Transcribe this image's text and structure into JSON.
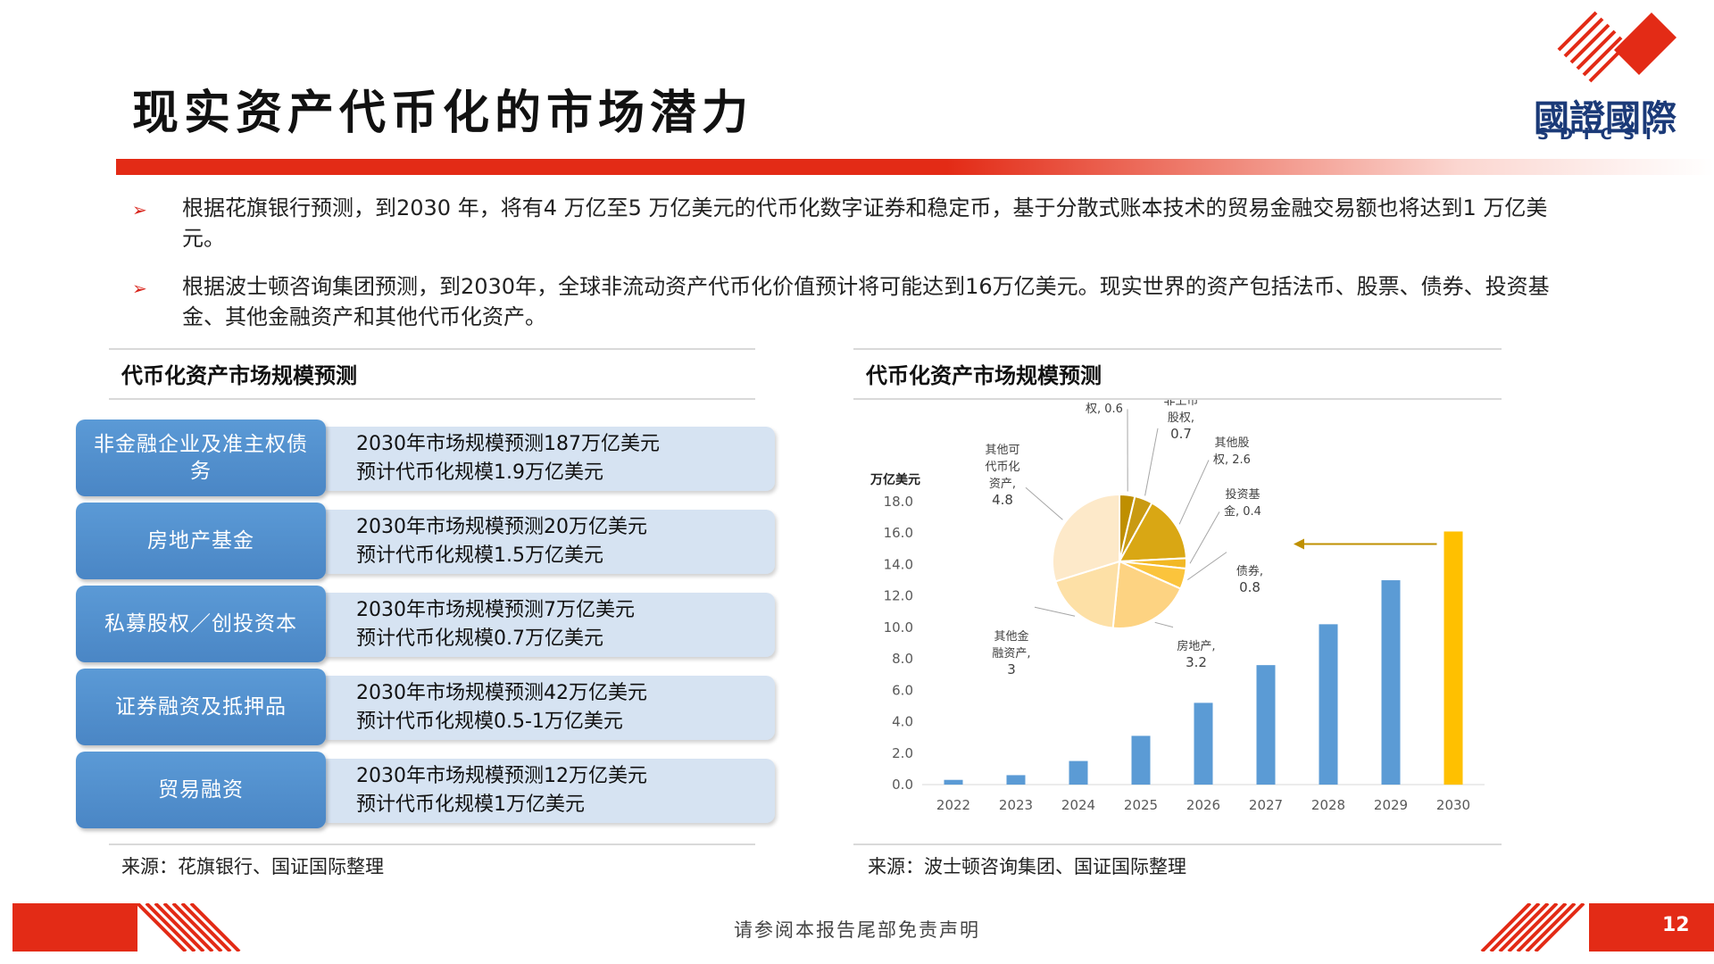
{
  "header": {
    "title": "现实资产代币化的市场潜力",
    "logo_text": "國證國際",
    "logo_sub": "SDICSI"
  },
  "bullets": [
    "根据花旗银行预测，到2030 年，将有4 万亿至5 万亿美元的代币化数字证券和稳定币，基于分散式账本技术的贸易金融交易额也将达到1 万亿美元。",
    "根据波士顿咨询集团预测，到2030年，全球非流动资产代币化价值预计将可能达到16万亿美元。现实世界的资产包括法币、股票、债券、投资基金、其他金融资产和其他代币化资产。"
  ],
  "left_panel": {
    "title": "代币化资产市场规模预测",
    "rows": [
      {
        "label": "非金融企业及准主权债务",
        "line1": "2030年市场规模预测187万亿美元",
        "line2": "预计代币化规模1.9万亿美元"
      },
      {
        "label": "房地产基金",
        "line1": "2030年市场规模预测20万亿美元",
        "line2": "预计代币化规模1.5万亿美元"
      },
      {
        "label": "私募股权／创投资本",
        "line1": "2030年市场规模预测7万亿美元",
        "line2": "预计代币化规模0.7万亿美元"
      },
      {
        "label": "证券融资及抵押品",
        "line1": "2030年市场规模预测42万亿美元",
        "line2": "预计代币化规模0.5-1万亿美元"
      },
      {
        "label": "贸易融资",
        "line1": "2030年市场规模预测12万亿美元",
        "line2": "预计代币化规模1万亿美元"
      }
    ],
    "source": "来源：花旗银行、国证国际整理"
  },
  "right_panel": {
    "title": "代币化资产市场规模预测",
    "source": "来源：波士顿咨询集团、国证国际整理"
  },
  "chart_data": [
    {
      "type": "bar",
      "ylabel": "万亿美元",
      "categories": [
        "2022",
        "2023",
        "2024",
        "2025",
        "2026",
        "2027",
        "2028",
        "2029",
        "2030"
      ],
      "values": [
        0.3,
        0.6,
        1.5,
        3.1,
        5.2,
        7.6,
        10.2,
        13.0,
        16.1
      ],
      "highlight_index": 8,
      "colors": {
        "bar": "#5b9bd5",
        "highlight": "#ffc000",
        "arrow": "#bf9000"
      },
      "ylim": [
        0,
        18
      ],
      "yticks": [
        "0.0",
        "2.0",
        "4.0",
        "6.0",
        "8.0",
        "10.0",
        "12.0",
        "14.0",
        "16.0",
        "18.0"
      ],
      "grid": false
    },
    {
      "type": "pie",
      "slices": [
        {
          "label": "上市股权",
          "value": 0.6,
          "color": "#bf8f00"
        },
        {
          "label": "非上市股权",
          "value": 0.7,
          "color": "#c99a12"
        },
        {
          "label": "其他股权",
          "value": 2.6,
          "color": "#d9a714"
        },
        {
          "label": "投资基金",
          "value": 0.4,
          "color": "#f2b824"
        },
        {
          "label": "债券",
          "value": 0.8,
          "color": "#fbc43c"
        },
        {
          "label": "房地产",
          "value": 3.2,
          "color": "#fdd382"
        },
        {
          "label": "其他金融资产",
          "value": 3,
          "color": "#fde0a6"
        },
        {
          "label": "其他可代币化资产",
          "value": 4.8,
          "color": "#fde9c9"
        }
      ],
      "data_labels": [
        {
          "l1": "上市股",
          "l2": "权, 0.6"
        },
        {
          "l1": "非上市",
          "l2": "股权,",
          "l3": "0.7"
        },
        {
          "l1": "其他股",
          "l2": "权, 2.6"
        },
        {
          "l1": "投资基",
          "l2": "金, 0.4"
        },
        {
          "l1": "债券,",
          "l2": "0.8"
        },
        {
          "l1": "房地产,",
          "l2": "3.2"
        },
        {
          "l1": "其他金",
          "l2": "融资产,",
          "l3": "3"
        },
        {
          "l1": "其他可",
          "l2": "代币化",
          "l3": "资产,",
          "l4": "4.8"
        }
      ]
    }
  ],
  "footer": {
    "note": "请参阅本报告尾部免责声明",
    "page": "12"
  }
}
